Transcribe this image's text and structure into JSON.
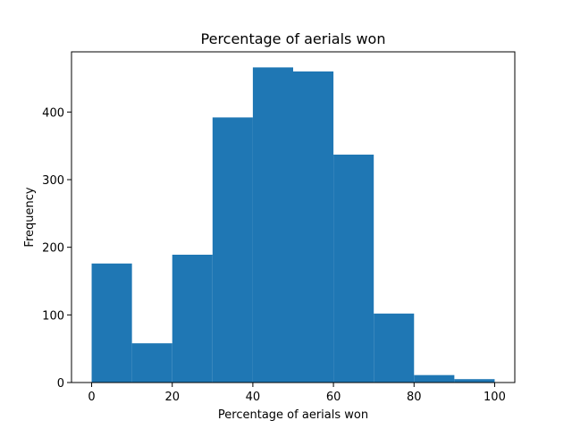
{
  "chart_data": {
    "type": "bar",
    "title": "Percentage of aerials won",
    "xlabel": "Percentage of aerials won",
    "ylabel": "Frequency",
    "bin_edges": [
      0,
      10,
      20,
      30,
      40,
      50,
      60,
      70,
      80,
      90,
      100
    ],
    "values": [
      176,
      58,
      189,
      392,
      466,
      460,
      337,
      102,
      11,
      5
    ],
    "xlim": [
      -5,
      105
    ],
    "ylim": [
      0,
      489
    ],
    "x_ticks": [
      0,
      20,
      40,
      60,
      80,
      100
    ],
    "y_ticks": [
      0,
      100,
      200,
      300,
      400
    ],
    "bar_color": "#1f77b4",
    "grid": false,
    "legend": "none"
  }
}
